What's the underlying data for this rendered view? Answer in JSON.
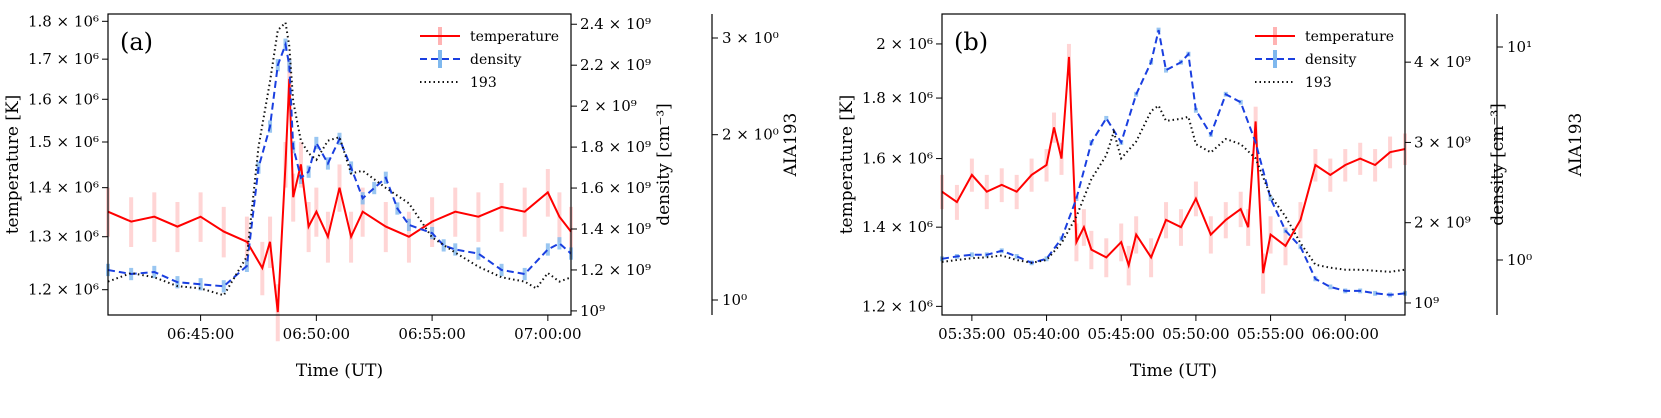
{
  "chart_data": [
    {
      "type": "line",
      "panel_label": "(a)",
      "xlabel": "Time (UT)",
      "ylabel_left": "temperature [K]",
      "ylabel_right1": "density [cm⁻³]",
      "ylabel_right2": "AIA193",
      "x_range": [
        "06:41:00",
        "07:01:00"
      ],
      "x_ticks": [
        "06:45:00",
        "06:50:00",
        "06:55:00",
        "07:00:00"
      ],
      "yticks_left": [
        "1.2 × 10⁶",
        "1.3 × 10⁶",
        "1.4 × 10⁶",
        "1.5 × 10⁶",
        "1.6 × 10⁶",
        "1.7 × 10⁶",
        "1.8 × 10⁶"
      ],
      "yticks_right1": [
        "10⁹",
        "1.2 × 10⁹",
        "1.4 × 10⁹",
        "1.6 × 10⁹",
        "1.8 × 10⁹",
        "2 × 10⁹",
        "2.2 × 10⁹",
        "2.4 × 10⁹"
      ],
      "yticks_right2": [
        "10⁰",
        "2 × 10⁰",
        "3 × 10⁰"
      ],
      "legend_position": "top-right",
      "series": [
        {
          "name": "temperature",
          "color": "#ff0000",
          "style": "solid",
          "axis": "temperature",
          "x": [
            "06:41:00",
            "06:42:00",
            "06:43:00",
            "06:44:00",
            "06:45:00",
            "06:46:00",
            "06:47:00",
            "06:47:40",
            "06:48:00",
            "06:48:20",
            "06:48:40",
            "06:48:50",
            "06:49:00",
            "06:49:20",
            "06:49:40",
            "06:50:00",
            "06:50:30",
            "06:51:00",
            "06:51:30",
            "06:52:00",
            "06:53:00",
            "06:54:00",
            "06:55:00",
            "06:56:00",
            "06:57:00",
            "06:58:00",
            "06:59:00",
            "07:00:00",
            "07:00:30",
            "07:01:00"
          ],
          "y": [
            1350000.0,
            1330000.0,
            1340000.0,
            1320000.0,
            1340000.0,
            1310000.0,
            1290000.0,
            1240000.0,
            1290000.0,
            1160000.0,
            1450000.0,
            1650000.0,
            1380000.0,
            1450000.0,
            1320000.0,
            1350000.0,
            1300000.0,
            1400000.0,
            1300000.0,
            1350000.0,
            1320000.0,
            1300000.0,
            1330000.0,
            1350000.0,
            1340000.0,
            1360000.0,
            1350000.0,
            1390000.0,
            1340000.0,
            1310000.0
          ],
          "error": 50000.0
        },
        {
          "name": "density",
          "color": "#1a3fe0",
          "style": "dashed",
          "axis": "density",
          "x": [
            "06:41:00",
            "06:42:00",
            "06:43:00",
            "06:44:00",
            "06:45:00",
            "06:46:00",
            "06:47:00",
            "06:47:30",
            "06:48:00",
            "06:48:20",
            "06:48:40",
            "06:48:50",
            "06:49:00",
            "06:49:20",
            "06:49:40",
            "06:50:00",
            "06:50:30",
            "06:51:00",
            "06:51:30",
            "06:52:00",
            "06:52:30",
            "06:53:00",
            "06:53:30",
            "06:54:00",
            "06:55:00",
            "06:55:30",
            "06:56:00",
            "06:57:00",
            "06:58:00",
            "06:59:00",
            "07:00:00",
            "07:00:30",
            "07:01:00"
          ],
          "y": [
            1200000000.0,
            1180000000.0,
            1190000000.0,
            1140000000.0,
            1130000000.0,
            1120000000.0,
            1220000000.0,
            1700000000.0,
            1900000000.0,
            2200000000.0,
            2300000000.0,
            2200000000.0,
            1800000000.0,
            1650000000.0,
            1680000000.0,
            1820000000.0,
            1720000000.0,
            1840000000.0,
            1700000000.0,
            1550000000.0,
            1600000000.0,
            1650000000.0,
            1500000000.0,
            1420000000.0,
            1380000000.0,
            1320000000.0,
            1300000000.0,
            1280000000.0,
            1200000000.0,
            1180000000.0,
            1300000000.0,
            1330000000.0,
            1280000000.0
          ],
          "error": 30000000.0
        },
        {
          "name": "193",
          "color": "#111111",
          "style": "dotted",
          "axis": "AIA193",
          "x": [
            "06:41:00",
            "06:42:00",
            "06:43:00",
            "06:44:00",
            "06:45:00",
            "06:46:00",
            "06:47:00",
            "06:47:30",
            "06:48:00",
            "06:48:20",
            "06:48:40",
            "06:48:50",
            "06:49:00",
            "06:49:20",
            "06:49:40",
            "06:50:00",
            "06:50:30",
            "06:51:00",
            "06:51:30",
            "06:52:00",
            "06:53:00",
            "06:54:00",
            "06:55:00",
            "06:56:00",
            "06:57:00",
            "06:58:00",
            "06:59:00",
            "06:59:30",
            "07:00:00",
            "07:00:30",
            "07:01:00"
          ],
          "y": [
            1.08,
            1.12,
            1.1,
            1.06,
            1.05,
            1.02,
            1.2,
            1.9,
            2.5,
            3.1,
            3.2,
            2.9,
            2.3,
            1.95,
            1.85,
            1.8,
            1.95,
            1.98,
            1.7,
            1.72,
            1.6,
            1.5,
            1.3,
            1.22,
            1.15,
            1.1,
            1.08,
            1.05,
            1.12,
            1.08,
            1.1
          ]
        }
      ]
    },
    {
      "type": "line",
      "panel_label": "(b)",
      "xlabel": "Time (UT)",
      "ylabel_left": "temperature [K]",
      "ylabel_right1": "density [cm⁻³]",
      "ylabel_right2": "AIA193",
      "x_range": [
        "05:33:00",
        "06:04:00"
      ],
      "x_ticks": [
        "05:35:00",
        "05:40:00",
        "05:45:00",
        "05:50:00",
        "05:55:00",
        "06:00:00"
      ],
      "yticks_left": [
        "1.2 × 10⁶",
        "1.4 × 10⁶",
        "1.6 × 10⁶",
        "1.8 × 10⁶",
        "2 × 10⁶"
      ],
      "yticks_right1": [
        "10⁹",
        "2 × 10⁹",
        "3 × 10⁹",
        "4 × 10⁹"
      ],
      "yticks_right2": [
        "10⁰",
        "10¹"
      ],
      "legend_position": "top-right",
      "series": [
        {
          "name": "temperature",
          "color": "#ff0000",
          "style": "solid",
          "axis": "temperature",
          "x": [
            "05:33:00",
            "05:34:00",
            "05:35:00",
            "05:36:00",
            "05:37:00",
            "05:38:00",
            "05:39:00",
            "05:40:00",
            "05:40:30",
            "05:41:00",
            "05:41:30",
            "05:42:00",
            "05:42:30",
            "05:43:00",
            "05:44:00",
            "05:45:00",
            "05:45:30",
            "05:46:00",
            "05:47:00",
            "05:48:00",
            "05:49:00",
            "05:50:00",
            "05:51:00",
            "05:52:00",
            "05:53:00",
            "05:53:30",
            "05:54:00",
            "05:54:30",
            "05:55:00",
            "05:56:00",
            "05:57:00",
            "05:58:00",
            "05:59:00",
            "06:00:00",
            "06:01:00",
            "06:02:00",
            "06:03:00",
            "06:04:00"
          ],
          "y": [
            1500000.0,
            1470000.0,
            1550000.0,
            1500000.0,
            1520000.0,
            1500000.0,
            1550000.0,
            1580000.0,
            1700000.0,
            1600000.0,
            1950000.0,
            1360000.0,
            1400000.0,
            1340000.0,
            1320000.0,
            1360000.0,
            1300000.0,
            1380000.0,
            1320000.0,
            1420000.0,
            1400000.0,
            1480000.0,
            1380000.0,
            1420000.0,
            1450000.0,
            1400000.0,
            1720000.0,
            1280000.0,
            1380000.0,
            1350000.0,
            1420000.0,
            1580000.0,
            1550000.0,
            1580000.0,
            1600000.0,
            1580000.0,
            1620000.0,
            1630000.0
          ],
          "error": 50000.0
        },
        {
          "name": "density",
          "color": "#1a3fe0",
          "style": "dashed",
          "axis": "density",
          "x": [
            "05:33:00",
            "05:34:00",
            "05:35:00",
            "05:36:00",
            "05:37:00",
            "05:38:00",
            "05:39:00",
            "05:40:00",
            "05:41:00",
            "05:42:00",
            "05:43:00",
            "05:44:00",
            "05:45:00",
            "05:46:00",
            "05:47:00",
            "05:47:30",
            "05:48:00",
            "05:49:00",
            "05:49:30",
            "05:50:00",
            "05:51:00",
            "05:52:00",
            "05:53:00",
            "05:54:00",
            "05:55:00",
            "05:56:00",
            "05:57:00",
            "05:58:00",
            "05:59:00",
            "06:00:00",
            "06:01:00",
            "06:02:00",
            "06:03:00",
            "06:04:00"
          ],
          "y": [
            1550000000.0,
            1580000000.0,
            1600000000.0,
            1600000000.0,
            1650000000.0,
            1580000000.0,
            1500000000.0,
            1550000000.0,
            1800000000.0,
            2300000000.0,
            3000000000.0,
            3300000000.0,
            3000000000.0,
            3600000000.0,
            4000000000.0,
            4400000000.0,
            3900000000.0,
            4000000000.0,
            4100000000.0,
            3400000000.0,
            3100000000.0,
            3600000000.0,
            3500000000.0,
            3000000000.0,
            2300000000.0,
            1900000000.0,
            1700000000.0,
            1300000000.0,
            1200000000.0,
            1150000000.0,
            1150000000.0,
            1120000000.0,
            1100000000.0,
            1120000000.0
          ],
          "error": 30000000.0
        },
        {
          "name": "193",
          "color": "#111111",
          "style": "dotted",
          "axis": "AIA193",
          "x": [
            "05:33:00",
            "05:34:00",
            "05:35:00",
            "05:36:00",
            "05:37:00",
            "05:38:00",
            "05:39:00",
            "05:40:00",
            "05:41:00",
            "05:42:00",
            "05:43:00",
            "05:44:00",
            "05:44:30",
            "05:45:00",
            "05:46:00",
            "05:47:00",
            "05:47:30",
            "05:48:00",
            "05:49:00",
            "05:49:30",
            "05:50:00",
            "05:51:00",
            "05:52:00",
            "05:53:00",
            "05:54:00",
            "05:55:00",
            "05:56:00",
            "05:57:00",
            "05:58:00",
            "05:59:00",
            "06:00:00",
            "06:01:00",
            "06:02:00",
            "06:03:00",
            "06:04:00"
          ],
          "y": [
            0.98,
            1.0,
            1.02,
            1.03,
            1.05,
            1.0,
            0.97,
            1.0,
            1.2,
            1.6,
            2.4,
            3.1,
            4.0,
            3.0,
            3.6,
            5.0,
            5.3,
            4.5,
            4.6,
            4.7,
            3.5,
            3.2,
            3.7,
            3.5,
            3.0,
            2.0,
            1.6,
            1.2,
            0.95,
            0.92,
            0.9,
            0.9,
            0.89,
            0.88,
            0.9
          ]
        }
      ]
    }
  ]
}
